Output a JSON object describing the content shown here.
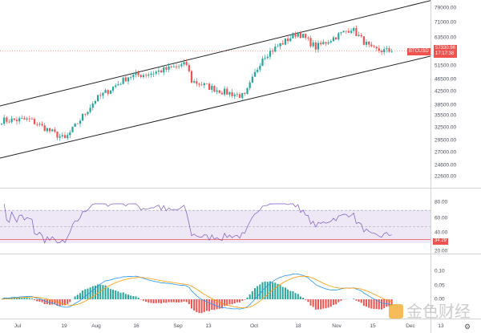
{
  "symbol": "BTCUSD",
  "last_price": "57330.96",
  "countdown": "17:17:38",
  "price_axis": [
    "79000.00",
    "71000.00",
    "63500.00",
    "51500.00",
    "46500.00",
    "42500.00",
    "38500.00",
    "35500.00",
    "32500.00",
    "29500.00",
    "27000.00",
    "24600.00",
    "22600.00"
  ],
  "rsi_axis": [
    "80.00",
    "60.00",
    "40.00",
    "20.00"
  ],
  "rsi_value": "34.29",
  "macd_axis": [
    "0.10",
    "0.05",
    "0.00"
  ],
  "time_axis": [
    "Jul",
    "19",
    "Aug",
    "16",
    "Sep",
    "13",
    "Oct",
    "18",
    "Nov",
    "15",
    "Dec",
    "13"
  ],
  "watermark": "金色财经",
  "colors": {
    "up": "#26a69a",
    "down": "#ef5350",
    "rsi_band": "#ede7f6",
    "macd": "#2196f3",
    "signal": "#ff9800"
  },
  "chart_data": {
    "type": "candlestick",
    "scale": "log",
    "ylim": [
      22600,
      79000
    ],
    "price_path": [
      [
        "Jun 25",
        34300
      ],
      [
        "Jul 6",
        34500
      ],
      [
        "Jul 20",
        29800
      ],
      [
        "Aug 1",
        40000
      ],
      [
        "Aug 14",
        47500
      ],
      [
        "Aug 22",
        48500
      ],
      [
        "Sep 6",
        52000
      ],
      [
        "Sep 8",
        46000
      ],
      [
        "Sep 20",
        42500
      ],
      [
        "Sep 29",
        41000
      ],
      [
        "Oct 6",
        55000
      ],
      [
        "Oct 20",
        66000
      ],
      [
        "Oct 27",
        59000
      ],
      [
        "Nov 10",
        68000
      ],
      [
        "Nov 18",
        58000
      ],
      [
        "Nov 26",
        57330.96
      ]
    ],
    "indicators": [
      "RSI",
      "MACD"
    ],
    "channel": "ascending"
  }
}
